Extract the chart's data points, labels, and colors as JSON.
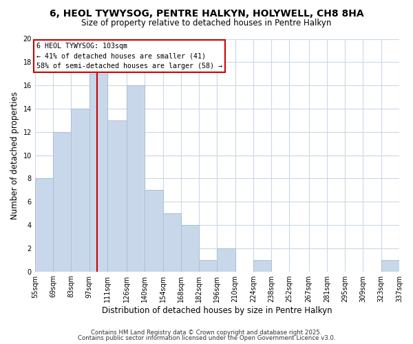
{
  "title": "6, HEOL TYWYSOG, PENTRE HALKYN, HOLYWELL, CH8 8HA",
  "subtitle": "Size of property relative to detached houses in Pentre Halkyn",
  "xlabel": "Distribution of detached houses by size in Pentre Halkyn",
  "ylabel": "Number of detached properties",
  "bar_color": "#c8d8ea",
  "bar_edge_color": "#a8c0d4",
  "bins": [
    55,
    69,
    83,
    97,
    111,
    126,
    140,
    154,
    168,
    182,
    196,
    210,
    224,
    238,
    252,
    267,
    281,
    295,
    309,
    323,
    337
  ],
  "counts": [
    8,
    12,
    14,
    17,
    13,
    16,
    7,
    5,
    4,
    1,
    2,
    0,
    1,
    0,
    0,
    0,
    0,
    0,
    0,
    1
  ],
  "tick_labels": [
    "55sqm",
    "69sqm",
    "83sqm",
    "97sqm",
    "111sqm",
    "126sqm",
    "140sqm",
    "154sqm",
    "168sqm",
    "182sqm",
    "196sqm",
    "210sqm",
    "224sqm",
    "238sqm",
    "252sqm",
    "267sqm",
    "281sqm",
    "295sqm",
    "309sqm",
    "323sqm",
    "337sqm"
  ],
  "vline_x": 103,
  "vline_color": "#cc0000",
  "annotation_title": "6 HEOL TYWYSOG: 103sqm",
  "annotation_line1": "← 41% of detached houses are smaller (41)",
  "annotation_line2": "58% of semi-detached houses are larger (58) →",
  "ylim": [
    0,
    20
  ],
  "yticks": [
    0,
    2,
    4,
    6,
    8,
    10,
    12,
    14,
    16,
    18,
    20
  ],
  "footer1": "Contains HM Land Registry data © Crown copyright and database right 2025.",
  "footer2": "Contains public sector information licensed under the Open Government Licence v3.0.",
  "background_color": "#ffffff",
  "grid_color": "#c8d8e8"
}
